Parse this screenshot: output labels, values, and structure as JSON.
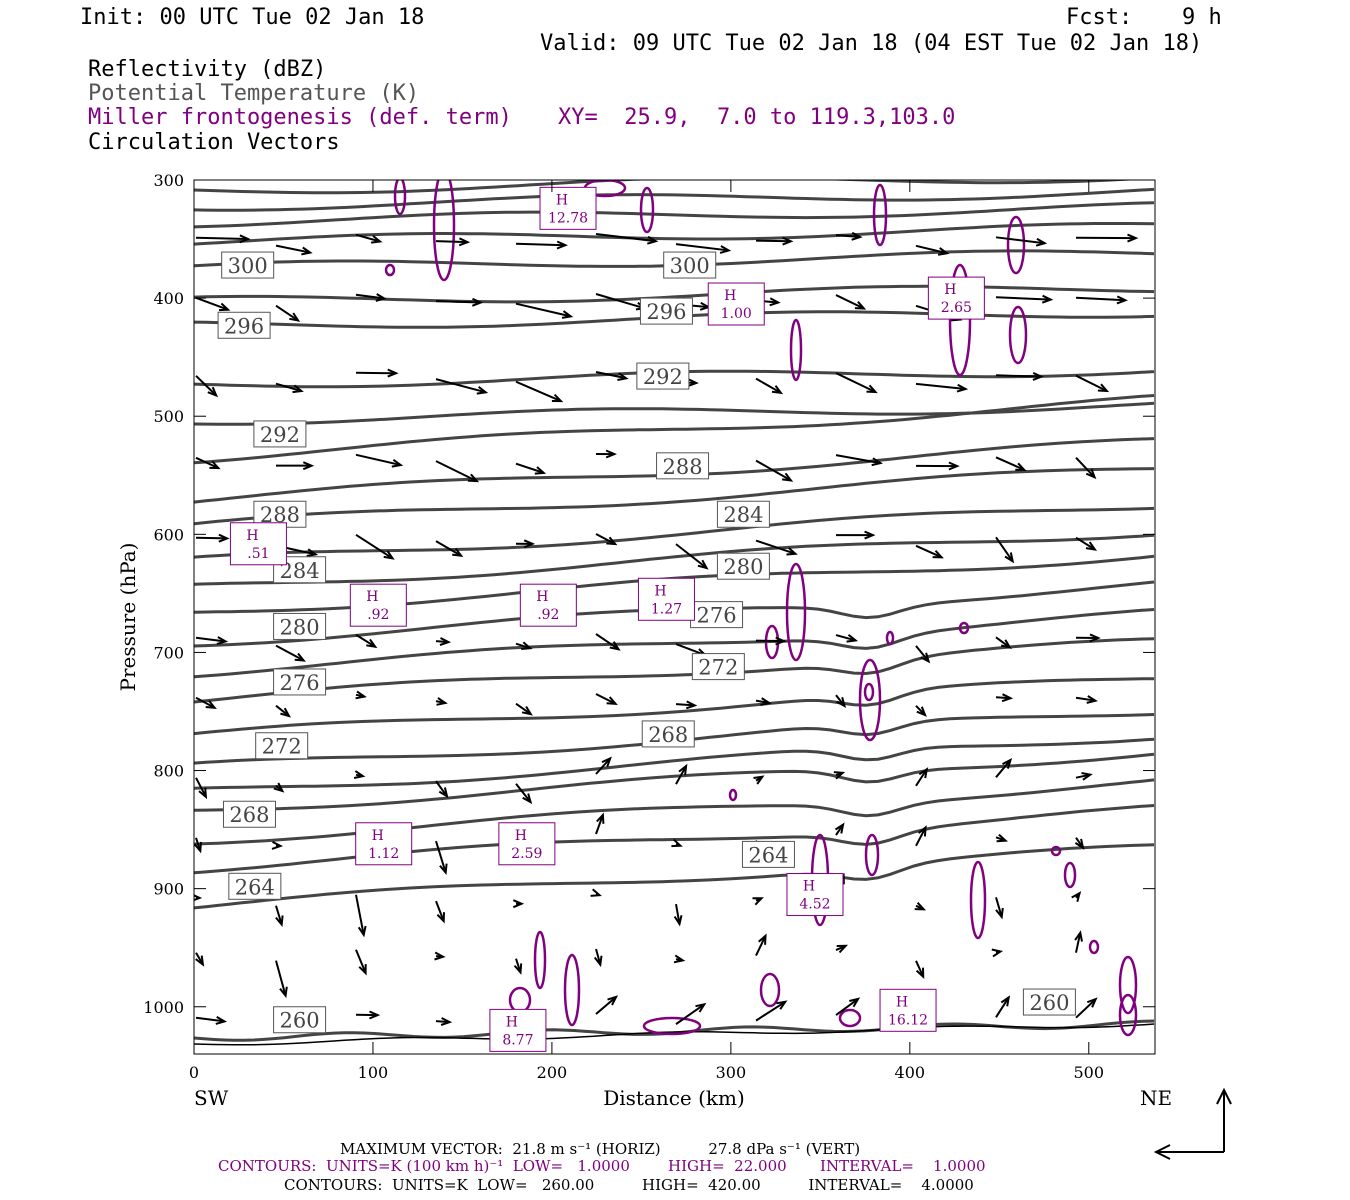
{
  "header": {
    "init": "Init: 00 UTC Tue 02 Jan 18",
    "fcst_label": "Fcst:",
    "fcst_value": "9 h",
    "valid": "Valid: 09 UTC Tue 02 Jan 18 (04 EST Tue 02 Jan 18)"
  },
  "legend": {
    "line1": "Reflectivity (dBZ)",
    "line2": "Potential Temperature (K)",
    "line3": "Miller frontogenesis (def. term)",
    "xy": "XY=  25.9,  7.0 to 119.3,103.0",
    "line4": "Circulation Vectors"
  },
  "colors": {
    "theta": "#444444",
    "frontogenesis": "#800080",
    "vectors": "#000000"
  },
  "footer": {
    "maxvec": "MAXIMUM VECTOR:  21.8 m s⁻¹ (HORIZ)          27.8 dPa s⁻¹ (VERT)",
    "contours1": "CONTOURS:  UNITS=K (100 km h)⁻¹  LOW=   1.0000        HIGH=  22.000       INTERVAL=    1.0000",
    "contours2": "CONTOURS:  UNITS=K  LOW=   260.00          HIGH=  420.00          INTERVAL=    4.0000"
  },
  "chart_data": {
    "type": "cross-section",
    "xlabel": "Distance (km)",
    "ylabel": "Pressure (hPa)",
    "xlim": [
      0,
      537
    ],
    "ylim": [
      1040,
      300
    ],
    "x_ticks": [
      "0",
      "100",
      "200",
      "300",
      "400",
      "500"
    ],
    "y_ticks": [
      "300",
      "400",
      "500",
      "600",
      "700",
      "800",
      "900",
      "1000"
    ],
    "left_end": "SW",
    "right_end": "NE",
    "theta_labels": [
      {
        "text": "300",
        "x": 30,
        "p": 372
      },
      {
        "text": "300",
        "x": 277,
        "p": 372
      },
      {
        "text": "296",
        "x": 28,
        "p": 423
      },
      {
        "text": "296",
        "x": 264,
        "p": 411
      },
      {
        "text": "292",
        "x": 262,
        "p": 466
      },
      {
        "text": "292",
        "x": 48,
        "p": 515
      },
      {
        "text": "288",
        "x": 273,
        "p": 542
      },
      {
        "text": "284",
        "x": 307,
        "p": 583
      },
      {
        "text": "288",
        "x": 48,
        "p": 583
      },
      {
        "text": "284",
        "x": 59,
        "p": 630
      },
      {
        "text": "280",
        "x": 307,
        "p": 627
      },
      {
        "text": "276",
        "x": 292,
        "p": 668
      },
      {
        "text": "280",
        "x": 59,
        "p": 678
      },
      {
        "text": "272",
        "x": 293,
        "p": 712
      },
      {
        "text": "276",
        "x": 59,
        "p": 725
      },
      {
        "text": "268",
        "x": 265,
        "p": 769
      },
      {
        "text": "272",
        "x": 49,
        "p": 779
      },
      {
        "text": "268",
        "x": 31,
        "p": 837
      },
      {
        "text": "264",
        "x": 321,
        "p": 871
      },
      {
        "text": "264",
        "x": 34,
        "p": 898
      },
      {
        "text": "260",
        "x": 478,
        "p": 996
      },
      {
        "text": "260",
        "x": 59,
        "p": 1011
      }
    ],
    "highs": [
      {
        "value": "12.78",
        "x": 209,
        "p": 324
      },
      {
        "value": "1.00",
        "x": 303,
        "p": 405
      },
      {
        "value": "2.65",
        "x": 426,
        "p": 400
      },
      {
        "value": ".51",
        "x": 36,
        "p": 608
      },
      {
        "value": ".92",
        "x": 103,
        "p": 660
      },
      {
        "value": ".92",
        "x": 198,
        "p": 660
      },
      {
        "value": "1.27",
        "x": 264,
        "p": 655
      },
      {
        "value": "1.12",
        "x": 106,
        "p": 862
      },
      {
        "value": "2.59",
        "x": 186,
        "p": 862
      },
      {
        "value": "4.52",
        "x": 347,
        "p": 905
      },
      {
        "value": "16.12",
        "x": 399,
        "p": 1003
      },
      {
        "value": "8.77",
        "x": 181,
        "p": 1020
      }
    ]
  }
}
